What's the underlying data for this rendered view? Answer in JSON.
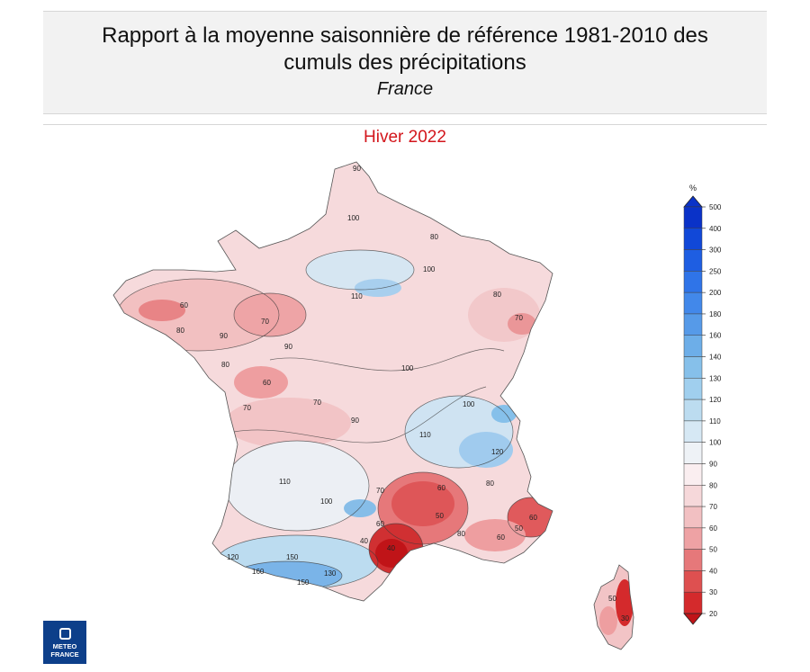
{
  "header": {
    "title_line1": "Rapport à la moyenne saisonnière de référence 1981-2010 des",
    "title_line2": "cumuls des précipitations",
    "subtitle": "France"
  },
  "season": "Hiver 2022",
  "legend": {
    "unit": "%",
    "levels": [
      "500",
      "400",
      "300",
      "250",
      "200",
      "180",
      "160",
      "140",
      "130",
      "120",
      "110",
      "100",
      "90",
      "80",
      "70",
      "60",
      "50",
      "40",
      "30",
      "20"
    ],
    "colors": [
      "#0a32c8",
      "#1148d8",
      "#1e5ee2",
      "#2f74e8",
      "#4288ea",
      "#569ae8",
      "#6daee8",
      "#86c0ea",
      "#a0cfee",
      "#bcdcf0",
      "#d6e8f4",
      "#eef2f6",
      "#faeef0",
      "#f6d8da",
      "#f2c0c2",
      "#eea2a4",
      "#e6787a",
      "#de5050",
      "#d42a2c",
      "#c01418"
    ]
  },
  "map_labels": [
    "90",
    "100",
    "110",
    "80",
    "70",
    "60",
    "90",
    "100",
    "110",
    "80",
    "70",
    "60",
    "160",
    "120",
    "150",
    "130",
    "60",
    "50",
    "80",
    "40",
    "70",
    "110",
    "90",
    "100",
    "80",
    "70",
    "60",
    "50",
    "30",
    "50",
    "40",
    "60",
    "80",
    "100",
    "120",
    "150",
    "60",
    "70",
    "80",
    "90",
    "100"
  ],
  "logo": {
    "line1": "METEO",
    "line2": "FRANCE"
  }
}
